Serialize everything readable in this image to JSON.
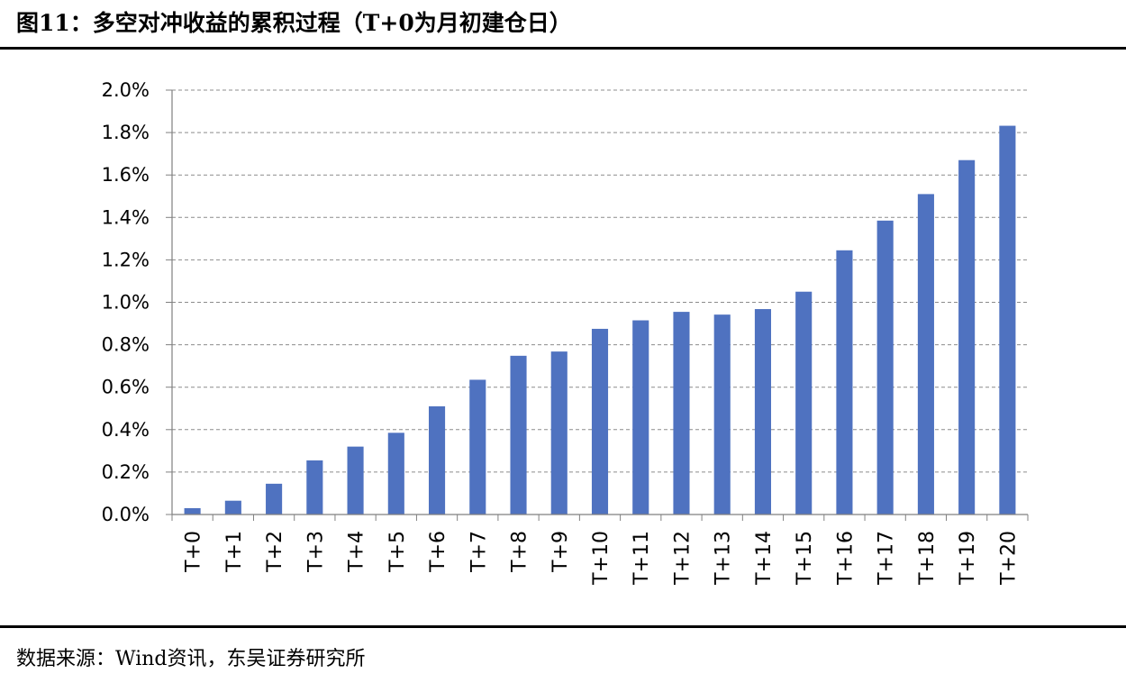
{
  "figure": {
    "title": "图11：多空对冲收益的累积过程（T+0为月初建仓日）",
    "source": "数据来源：Wind资讯，东吴证券研究所"
  },
  "chart_data": {
    "type": "bar",
    "title": "",
    "xlabel": "",
    "ylabel": "",
    "ylim": [
      0,
      0.02
    ],
    "yticks": [
      0,
      0.002,
      0.004,
      0.006,
      0.008,
      0.01,
      0.012,
      0.014,
      0.016,
      0.018,
      0.02
    ],
    "ytick_labels": [
      "0.0%",
      "0.2%",
      "0.4%",
      "0.6%",
      "0.8%",
      "1.0%",
      "1.2%",
      "1.4%",
      "1.6%",
      "1.8%",
      "2.0%"
    ],
    "grid": true,
    "legend": "none",
    "bar_color": "#4F72C0",
    "categories": [
      "T+0",
      "T+1",
      "T+2",
      "T+3",
      "T+4",
      "T+5",
      "T+6",
      "T+7",
      "T+8",
      "T+9",
      "T+10",
      "T+11",
      "T+12",
      "T+13",
      "T+14",
      "T+15",
      "T+16",
      "T+17",
      "T+18",
      "T+19",
      "T+20"
    ],
    "values": [
      0.0003,
      0.00065,
      0.00145,
      0.00255,
      0.0032,
      0.00385,
      0.0051,
      0.00635,
      0.00748,
      0.00768,
      0.00875,
      0.00915,
      0.00955,
      0.00942,
      0.00968,
      0.0105,
      0.01245,
      0.01385,
      0.0151,
      0.0167,
      0.01832
    ]
  }
}
